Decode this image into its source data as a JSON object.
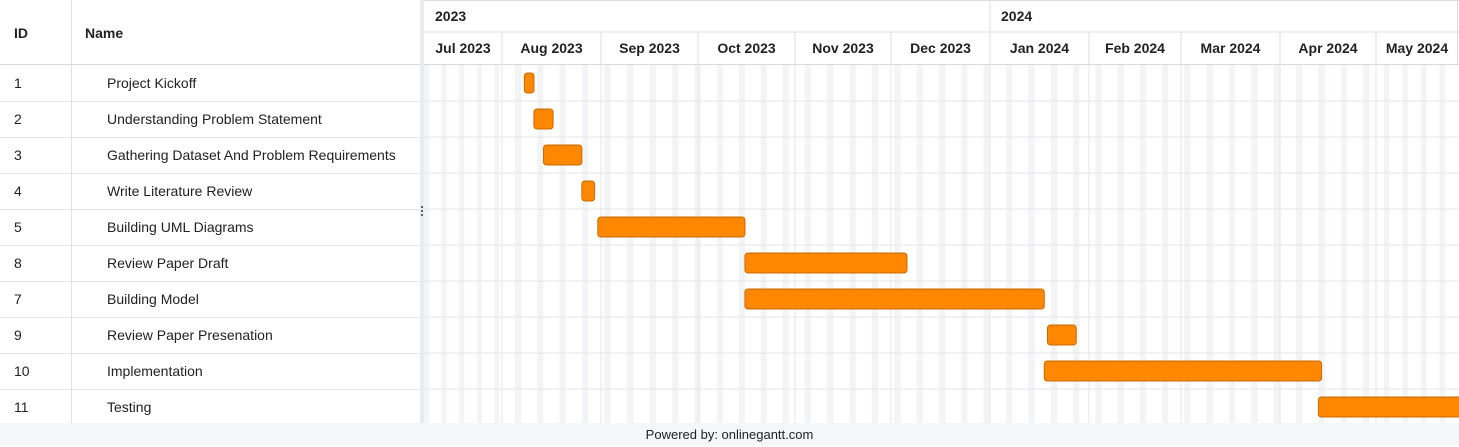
{
  "table": {
    "headers": {
      "id": "ID",
      "name": "Name"
    },
    "rows": [
      {
        "id": "1",
        "name": "Project Kickoff"
      },
      {
        "id": "2",
        "name": "Understanding Problem Statement"
      },
      {
        "id": "3",
        "name": "Gathering Dataset And Problem Requirements"
      },
      {
        "id": "4",
        "name": "Write Literature Review"
      },
      {
        "id": "5",
        "name": "Building UML Diagrams"
      },
      {
        "id": "8",
        "name": "Review Paper Draft"
      },
      {
        "id": "7",
        "name": "Building Model"
      },
      {
        "id": "9",
        "name": "Review Paper Presenation"
      },
      {
        "id": "10",
        "name": "Implementation"
      },
      {
        "id": "11",
        "name": "Testing"
      }
    ]
  },
  "timeline": {
    "years": [
      "2023",
      "2024"
    ],
    "months": [
      "Jul 2023",
      "Aug 2023",
      "Sep 2023",
      "Oct 2023",
      "Nov 2023",
      "Dec 2023",
      "Jan 2024",
      "Feb 2024",
      "Mar 2024",
      "Apr 2024",
      "May 2024"
    ]
  },
  "chart_data": {
    "type": "gantt",
    "tasks": [
      {
        "id": "1",
        "name": "Project Kickoff",
        "start": "2023-08-08",
        "end": "2023-08-11"
      },
      {
        "id": "2",
        "name": "Understanding Problem Statement",
        "start": "2023-08-11",
        "end": "2023-08-17"
      },
      {
        "id": "3",
        "name": "Gathering Dataset And Problem Requirements",
        "start": "2023-08-14",
        "end": "2023-08-26"
      },
      {
        "id": "4",
        "name": "Write Literature Review",
        "start": "2023-08-26",
        "end": "2023-08-30"
      },
      {
        "id": "5",
        "name": "Building UML Diagrams",
        "start": "2023-08-31",
        "end": "2023-10-16"
      },
      {
        "id": "8",
        "name": "Review Paper Draft",
        "start": "2023-10-16",
        "end": "2023-12-06"
      },
      {
        "id": "7",
        "name": "Building Model",
        "start": "2023-10-16",
        "end": "2024-01-18"
      },
      {
        "id": "9",
        "name": "Review Paper Presenation",
        "start": "2024-01-19",
        "end": "2024-01-28"
      },
      {
        "id": "10",
        "name": "Implementation",
        "start": "2024-01-18",
        "end": "2024-04-14"
      },
      {
        "id": "11",
        "name": "Testing",
        "start": "2024-04-13",
        "end": "2024-06-22"
      }
    ],
    "bar_color": "#ff8800",
    "bar_border": "#c96a00"
  },
  "footer": {
    "text": "Powered by: onlinegantt.com"
  }
}
